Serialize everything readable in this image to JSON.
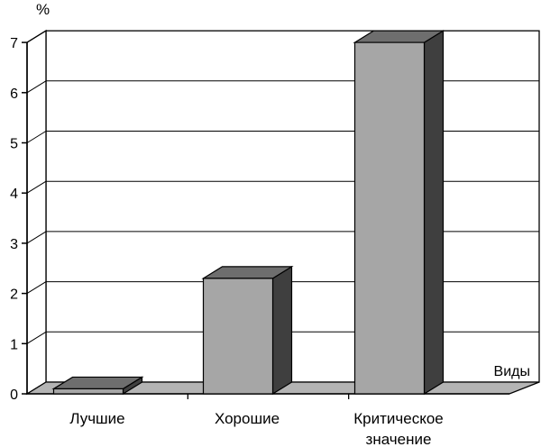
{
  "chart_data": {
    "type": "bar",
    "title": "",
    "ylabel": "%",
    "xlabel": "Виды",
    "categories": [
      [
        "Лучшие"
      ],
      [
        "Хорошие"
      ],
      [
        "Критическое",
        "значение"
      ]
    ],
    "values": [
      0.1,
      2.3,
      7.0
    ],
    "ylim": [
      0,
      7
    ],
    "yticks": [
      0,
      1,
      2,
      3,
      4,
      5,
      6,
      7
    ],
    "grid": true,
    "style": "3d",
    "colors": {
      "bar_front": "#a6a6a6",
      "bar_top": "#6e6e6e",
      "bar_side": "#3f3f3f",
      "floor": "#b4b4b4",
      "wall": "#ffffff",
      "grid": "#000000"
    }
  }
}
